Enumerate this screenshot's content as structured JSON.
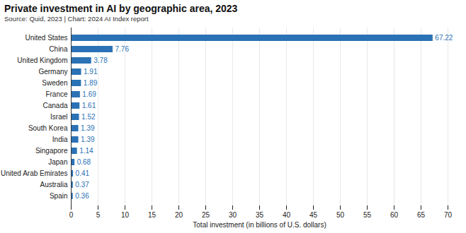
{
  "chart_data": {
    "type": "bar",
    "title": "Private investment in AI by geographic area, 2023",
    "subtitle": "Source: Quid, 2023 | Chart: 2024 AI Index report",
    "x_label": "Total investment (in billions of U.S. dollars)",
    "categories": [
      "United States",
      "China",
      "United Kingdom",
      "Germany",
      "Sweden",
      "France",
      "Canada",
      "Israel",
      "South Korea",
      "India",
      "Singapore",
      "Japan",
      "United Arab Emirates",
      "Australia",
      "Spain"
    ],
    "values": [
      67.22,
      7.76,
      3.78,
      1.91,
      1.89,
      1.69,
      1.61,
      1.52,
      1.39,
      1.39,
      1.14,
      0.68,
      0.41,
      0.37,
      0.36
    ],
    "color": "#2a72b5",
    "orientation": "horizontal",
    "xlim": [
      0,
      70
    ],
    "xticks": [
      0,
      5,
      10,
      15,
      20,
      25,
      30,
      35,
      40,
      45,
      50,
      55,
      60,
      65,
      70
    ],
    "grid": true,
    "data_labels": true
  }
}
